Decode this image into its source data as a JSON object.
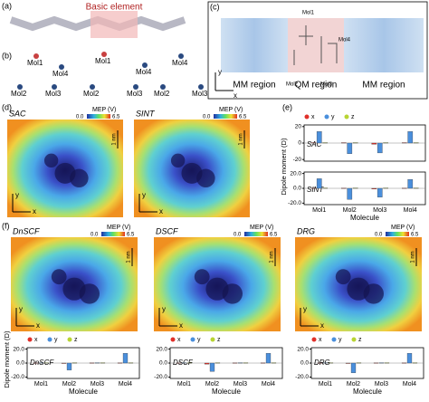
{
  "panel_labels": [
    "(a)",
    "(b)",
    "(c)",
    "(d)",
    "(e)",
    "(f)"
  ],
  "a": {
    "label": "Basic element"
  },
  "b": {
    "groups": [
      [
        "Mol1",
        "Mol4",
        "Mol2",
        "Mol3"
      ],
      [
        "Mol1",
        "Mol4",
        "Mol2",
        "Mol3"
      ],
      [
        "Mol4",
        "Mol2",
        "Mol3"
      ]
    ]
  },
  "c": {
    "mols": [
      "Mol1",
      "Mol2",
      "Mol3",
      "Mol4"
    ],
    "regions": [
      "MM region",
      "QM region",
      "MM region"
    ],
    "axes": [
      "y",
      "x"
    ]
  },
  "maps": {
    "names": [
      "SAC",
      "SINT",
      "DnSCF",
      "DSCF",
      "DRG"
    ],
    "colorbar_title": "MEP (V)",
    "colorbar_min": "0.0",
    "colorbar_max": "6.5",
    "scale": "1 nm",
    "axes": [
      "y",
      "x"
    ]
  },
  "chart_data": [
    {
      "type": "bar",
      "title": "SAC",
      "legend": true,
      "ylabel": "Dipole moment (D)",
      "ylim": [
        -22,
        22
      ],
      "yticks": [
        20,
        0,
        -20
      ],
      "series": [
        {
          "name": "x",
          "color": "#e0302a",
          "values": [
            0.5,
            0.5,
            -1.5,
            0.5
          ]
        },
        {
          "name": "y",
          "color": "#4a8fdc",
          "values": [
            14,
            -13,
            -12,
            14
          ]
        },
        {
          "name": "z",
          "color": "#b8d433",
          "values": [
            0.5,
            0.5,
            0.5,
            0.5
          ]
        }
      ]
    },
    {
      "type": "bar",
      "title": "SINT",
      "legend": false,
      "categories": [
        "Mol1",
        "Mol2",
        "Mol3",
        "Mol4"
      ],
      "xlabel": "Molecule",
      "ylim": [
        -22,
        22
      ],
      "yticks": [
        {
          "value": 20,
          "label": "20.0"
        },
        {
          "value": 0,
          "label": "0.0"
        },
        {
          "value": -20,
          "label": "-20.0"
        }
      ],
      "series": [
        {
          "name": "x",
          "color": "#e0302a",
          "values": [
            0.3,
            0.3,
            -1,
            0.3
          ]
        },
        {
          "name": "y",
          "color": "#4a8fdc",
          "values": [
            13,
            -15,
            -12,
            12
          ]
        },
        {
          "name": "z",
          "color": "#b8d433",
          "values": [
            0.5,
            0.5,
            0.5,
            0.5
          ]
        }
      ]
    },
    {
      "type": "bar",
      "title": "DnSCF",
      "legend": true,
      "ylabel": "Dipole moment (D)",
      "categories": [
        "Mol1",
        "Mol2",
        "Mol3",
        "Mol4"
      ],
      "xlabel": "Molecule",
      "ylim": [
        -22,
        22
      ],
      "yticks": [
        {
          "value": 20,
          "label": "20.0"
        },
        {
          "value": 0,
          "label": "0.0"
        },
        {
          "value": -20,
          "label": "-20.0"
        }
      ],
      "series": [
        {
          "name": "x",
          "color": "#e0302a",
          "values": [
            0.3,
            -0.5,
            0.3,
            0.3
          ]
        },
        {
          "name": "y",
          "color": "#4a8fdc",
          "values": [
            0.5,
            -10,
            0.5,
            14
          ]
        },
        {
          "name": "z",
          "color": "#b8d433",
          "values": [
            0.5,
            0.5,
            0.5,
            0.5
          ]
        }
      ]
    },
    {
      "type": "bar",
      "title": "DSCF",
      "legend": true,
      "categories": [
        "Mol1",
        "Mol2",
        "Mol3",
        "Mol4"
      ],
      "xlabel": "Molecule",
      "ylim": [
        -22,
        22
      ],
      "yticks": [
        {
          "value": 20,
          "label": "20.0"
        },
        {
          "value": 0,
          "label": "0.0"
        },
        {
          "value": -20,
          "label": "-20.0"
        }
      ],
      "series": [
        {
          "name": "x",
          "color": "#e0302a",
          "values": [
            0.3,
            -1.5,
            0.3,
            0.3
          ]
        },
        {
          "name": "y",
          "color": "#4a8fdc",
          "values": [
            0.5,
            -12,
            0.5,
            14
          ]
        },
        {
          "name": "z",
          "color": "#b8d433",
          "values": [
            0.5,
            0.5,
            0.5,
            0.5
          ]
        }
      ]
    },
    {
      "type": "bar",
      "title": "DRG",
      "legend": true,
      "categories": [
        "Mol1",
        "Mol2",
        "Mol3",
        "Mol4"
      ],
      "xlabel": "Molecule",
      "ylim": [
        -22,
        22
      ],
      "yticks": [
        {
          "value": 20,
          "label": "20.0"
        },
        {
          "value": 0,
          "label": "0.0"
        },
        {
          "value": -20,
          "label": "-20.0"
        }
      ],
      "series": [
        {
          "name": "x",
          "color": "#e0302a",
          "values": [
            0.3,
            -0.5,
            0.3,
            0.3
          ]
        },
        {
          "name": "y",
          "color": "#4a8fdc",
          "values": [
            0.5,
            -14,
            0.5,
            14
          ]
        },
        {
          "name": "z",
          "color": "#b8d433",
          "values": [
            0.5,
            0.5,
            0.5,
            0.5
          ]
        }
      ]
    }
  ]
}
